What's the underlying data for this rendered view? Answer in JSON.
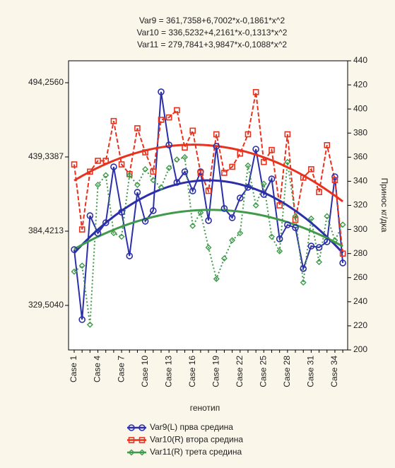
{
  "chart_data": {
    "type": "line",
    "equations": [
      "Var9 = 361,7358+6,7002*x-0,1861*x^2",
      "Var10 = 336,5232+4,2161*x-0,1313*x^2",
      "Var11 = 279,7841+3,9847*x-0,1088*x^2"
    ],
    "x_label": "генотип",
    "y2_label": "Принос кг/дка",
    "categories": [
      "Case 1",
      null,
      null,
      "Case 4",
      null,
      null,
      "Case 7",
      null,
      null,
      "Case 10",
      null,
      null,
      "Case 13",
      null,
      null,
      "Case 16",
      null,
      null,
      "Case 19",
      null,
      null,
      "Case 22",
      null,
      null,
      "Case 25",
      null,
      null,
      "Case 28",
      null,
      null,
      "Case 31",
      null,
      null,
      "Case 34",
      null
    ],
    "ylim": [
      296.56,
      510.47
    ],
    "yticks": [
      {
        "value": 329.504,
        "label": "329,5040"
      },
      {
        "value": 384.4213,
        "label": "384,4213"
      },
      {
        "value": 439.3387,
        "label": "439,3387"
      },
      {
        "value": 494.256,
        "label": "494,2560"
      }
    ],
    "y2lim": [
      200,
      440
    ],
    "y2ticks": [
      200,
      220,
      240,
      260,
      280,
      300,
      320,
      340,
      360,
      380,
      400,
      420,
      440
    ],
    "series": [
      {
        "name": "Var9(L) прва средина",
        "color": "#2b2fa8",
        "axis": "y",
        "marker": "circle",
        "dash": "none",
        "fit": [
          361.7358,
          6.7002,
          -0.1861
        ],
        "values": [
          370.8,
          319.0,
          395.9,
          382.9,
          390.7,
          432.0,
          398.5,
          366.1,
          413.2,
          391.8,
          399.6,
          487.5,
          448.2,
          420.5,
          428.4,
          414.2,
          428.4,
          392.3,
          447.2,
          401.2,
          394.4,
          409.0,
          416.9,
          445.1,
          411.6,
          423.1,
          378.7,
          389.1,
          387.0,
          356.7,
          373.4,
          372.4,
          376.6,
          424.7,
          360.9
        ]
      },
      {
        "name": "Var10(R) втора средина",
        "color": "#e8321e",
        "axis": "y2",
        "marker": "square",
        "dash": "6 3",
        "fit": [
          336.5232,
          4.2161,
          -0.1313
        ],
        "values": [
          354,
          300,
          348,
          357,
          357,
          390,
          354,
          346,
          384,
          364,
          348,
          391,
          393,
          399,
          368,
          382,
          347,
          332,
          379,
          347,
          352,
          363,
          379,
          414,
          356,
          366,
          320,
          379,
          308,
          343,
          350,
          331,
          370,
          341,
          280
        ]
      },
      {
        "name": "Var11(R) трета средина",
        "color": "#3f9a4a",
        "axis": "y2",
        "marker": "diamond",
        "dash": "2 3",
        "fit": [
          279.7841,
          3.9847,
          -0.1088
        ],
        "values": [
          265,
          270,
          221,
          337,
          345,
          297,
          294,
          345,
          337,
          350,
          341,
          335,
          351,
          358,
          360,
          303,
          314,
          285,
          259,
          276,
          291,
          297,
          353,
          320,
          338,
          294,
          282,
          356,
          311,
          256,
          309,
          273,
          311,
          291,
          304
        ]
      }
    ]
  }
}
